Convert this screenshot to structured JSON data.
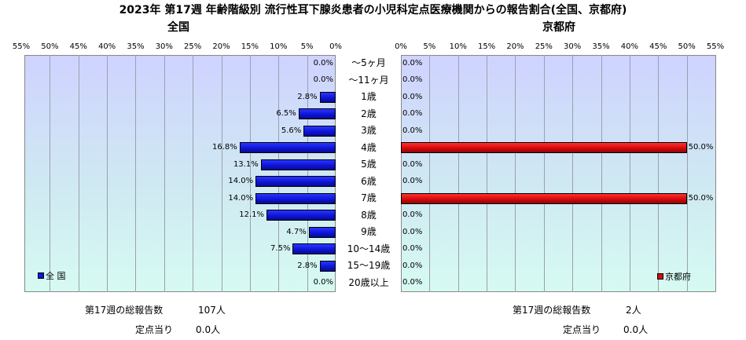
{
  "chart_data": {
    "type": "bar",
    "title": "2023年 第17週 年齢階級別 流行性耳下腺炎患者の小児科定点医療機関からの報告割合(全国、京都府)",
    "categories": [
      "～5ヶ月",
      "～11ヶ月",
      "1歳",
      "2歳",
      "3歳",
      "4歳",
      "5歳",
      "6歳",
      "7歳",
      "8歳",
      "9歳",
      "10～14歳",
      "15～19歳",
      "20歳以上"
    ],
    "xlim": [
      0,
      55
    ],
    "ticks": [
      "0%",
      "5%",
      "10%",
      "15%",
      "20%",
      "25%",
      "30%",
      "35%",
      "40%",
      "45%",
      "50%",
      "55%"
    ],
    "grid": true,
    "panels": [
      {
        "subtitle": "全国",
        "legend": "全 国",
        "legend_position": "bottom-left",
        "color": "#0d15d8",
        "values": [
          0.0,
          0.0,
          2.8,
          6.5,
          5.6,
          16.8,
          13.1,
          14.0,
          14.0,
          12.1,
          4.7,
          7.5,
          2.8,
          0.0
        ],
        "value_labels": [
          "0.0%",
          "0.0%",
          "2.8%",
          "6.5%",
          "5.6%",
          "16.8%",
          "13.1%",
          "14.0%",
          "14.0%",
          "12.1%",
          "4.7%",
          "7.5%",
          "2.8%",
          "0.0%"
        ],
        "total_label": "第17週の総報告数",
        "total_value": "107人",
        "per_site_label": "定点当り",
        "per_site_value": "0.0人"
      },
      {
        "subtitle": "京都府",
        "legend": "京都府",
        "legend_position": "bottom-right",
        "color": "#d60a0a",
        "values": [
          0.0,
          0.0,
          0.0,
          0.0,
          0.0,
          50.0,
          0.0,
          0.0,
          50.0,
          0.0,
          0.0,
          0.0,
          0.0,
          0.0
        ],
        "value_labels": [
          "0.0%",
          "0.0%",
          "0.0%",
          "0.0%",
          "0.0%",
          "50.0%",
          "0.0%",
          "0.0%",
          "50.0%",
          "0.0%",
          "0.0%",
          "0.0%",
          "0.0%",
          "0.0%"
        ],
        "total_label": "第17週の総報告数",
        "total_value": "2人",
        "per_site_label": "定点当り",
        "per_site_value": "0.0人"
      }
    ]
  }
}
